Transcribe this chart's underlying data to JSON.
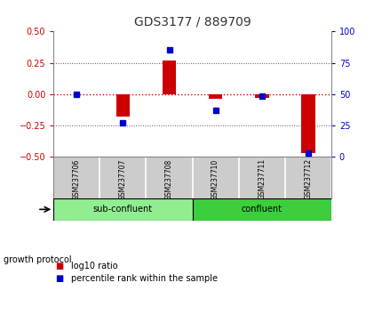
{
  "title": "GDS3177 / 889709",
  "samples": [
    "GSM237706",
    "GSM237707",
    "GSM237708",
    "GSM237710",
    "GSM237711",
    "GSM237712"
  ],
  "log10_ratio": [
    0.0,
    -0.18,
    0.27,
    -0.04,
    -0.03,
    -0.47
  ],
  "percentile_rank": [
    50,
    27,
    85,
    37,
    48,
    3
  ],
  "group_defs": [
    {
      "label": "sub-confluent",
      "start": 0,
      "end": 2,
      "color": "#90ee90"
    },
    {
      "label": "confluent",
      "start": 3,
      "end": 5,
      "color": "#3dce3d"
    }
  ],
  "group_label": "growth protocol",
  "ylim_left": [
    -0.5,
    0.5
  ],
  "ylim_right": [
    0,
    100
  ],
  "yticks_left": [
    -0.5,
    -0.25,
    0.0,
    0.25,
    0.5
  ],
  "yticks_right": [
    0,
    25,
    50,
    75,
    100
  ],
  "bar_color": "#cc0000",
  "dot_color": "#0000cc",
  "zero_line_color": "#cc0000",
  "grid_color": "#555555",
  "title_color": "#333333",
  "left_tick_color": "#cc0000",
  "right_tick_color": "#0000cc",
  "legend_bar_label": "log10 ratio",
  "legend_dot_label": "percentile rank within the sample",
  "background_color": "#ffffff",
  "plot_bg_color": "#ffffff",
  "label_bg_color": "#cccccc",
  "bar_width": 0.3
}
